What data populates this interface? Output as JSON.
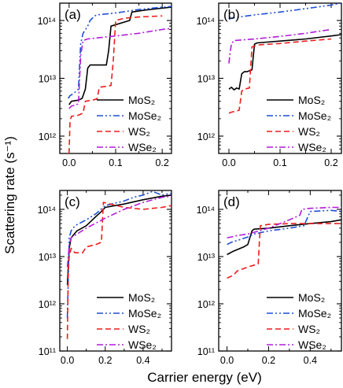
{
  "figure": {
    "ylabel": "Scattering rate (s⁻¹)",
    "xlabel": "Carrier energy (eV)"
  },
  "series_styles": [
    {
      "name": "MoS₂",
      "color": "#000000",
      "dash": "solid"
    },
    {
      "name": "MoSe₂",
      "color": "#1f4fd8",
      "dash": "dashdotdot"
    },
    {
      "name": "WS₂",
      "color": "#ee1c1c",
      "dash": "dash"
    },
    {
      "name": "WSe₂",
      "color": "#b21cd8",
      "dash": "dashdot"
    }
  ],
  "chart_data": [
    {
      "type": "line",
      "panel": "(a)",
      "xlim": [
        -0.02,
        0.22
      ],
      "ylim_log10": [
        11.7,
        14.3
      ],
      "yscale": "log",
      "xticks": [
        "0.0",
        "0.1",
        "0.2"
      ],
      "yticks": [
        "10¹²",
        "10¹³",
        "10¹⁴"
      ],
      "legend": "bottom-right",
      "series": [
        {
          "name": "MoS₂",
          "x": [
            0.0,
            0.005,
            0.02,
            0.028,
            0.035,
            0.04,
            0.045,
            0.08,
            0.085,
            0.09,
            0.13,
            0.135,
            0.16,
            0.19,
            0.22
          ],
          "y": [
            3500000000000.0,
            4000000000000.0,
            4200000000000.0,
            4500000000000.0,
            6500000000000.0,
            15000000000000.0,
            17000000000000.0,
            17000000000000.0,
            30000000000000.0,
            80000000000000.0,
            100000000000000.0,
            140000000000000.0,
            150000000000000.0,
            160000000000000.0,
            170000000000000.0
          ]
        },
        {
          "name": "MoSe₂",
          "x": [
            -0.002,
            0.002,
            0.01,
            0.02,
            0.025,
            0.03,
            0.04,
            0.045,
            0.055,
            0.06,
            0.1,
            0.15,
            0.2,
            0.22
          ],
          "y": [
            4500000000000.0,
            5000000000000.0,
            5500000000000.0,
            6500000000000.0,
            40000000000000.0,
            60000000000000.0,
            80000000000000.0,
            100000000000000.0,
            120000000000000.0,
            125000000000000.0,
            135000000000000.0,
            155000000000000.0,
            170000000000000.0,
            175000000000000.0
          ]
        },
        {
          "name": "WS₂",
          "x": [
            0.0,
            0.002,
            0.005,
            0.02,
            0.03,
            0.035,
            0.05,
            0.06,
            0.065,
            0.09,
            0.095,
            0.1,
            0.12,
            0.15,
            0.2
          ],
          "y": [
            500000000000.0,
            1800000000000.0,
            2200000000000.0,
            2300000000000.0,
            2500000000000.0,
            4000000000000.0,
            4200000000000.0,
            4400000000000.0,
            7000000000000.0,
            7500000000000.0,
            20000000000000.0,
            100000000000000.0,
            110000000000000.0,
            115000000000000.0,
            120000000000000.0
          ]
        },
        {
          "name": "WSe₂",
          "x": [
            0.0,
            0.005,
            0.02,
            0.025,
            0.03,
            0.04,
            0.06,
            0.1,
            0.15,
            0.2,
            0.22
          ],
          "y": [
            3000000000000.0,
            3300000000000.0,
            3600000000000.0,
            25000000000000.0,
            45000000000000.0,
            48000000000000.0,
            50000000000000.0,
            54000000000000.0,
            60000000000000.0,
            70000000000000.0,
            73000000000000.0
          ]
        }
      ]
    },
    {
      "type": "line",
      "panel": "(b)",
      "xlim": [
        -0.02,
        0.22
      ],
      "ylim_log10": [
        11.7,
        14.3
      ],
      "yscale": "log",
      "xticks": [
        "0.0",
        "0.1",
        "0.2"
      ],
      "yticks": [
        "10¹²",
        "10¹³",
        "10¹⁴"
      ],
      "legend": "bottom-right",
      "series": [
        {
          "name": "MoS₂",
          "x": [
            0.0,
            0.005,
            0.01,
            0.015,
            0.02,
            0.025,
            0.03,
            0.035,
            0.045,
            0.05,
            0.055,
            0.1,
            0.15,
            0.2,
            0.22
          ],
          "y": [
            6500000000000.0,
            7000000000000.0,
            6300000000000.0,
            6800000000000.0,
            6500000000000.0,
            12000000000000.0,
            13000000000000.0,
            13000000000000.0,
            14000000000000.0,
            39000000000000.0,
            41000000000000.0,
            44000000000000.0,
            48000000000000.0,
            54000000000000.0,
            57000000000000.0
          ]
        },
        {
          "name": "MoSe₂",
          "x": [
            0.0,
            0.005,
            0.05,
            0.1,
            0.15,
            0.2,
            0.22
          ],
          "y": [
            105000000000000.0,
            110000000000000.0,
            125000000000000.0,
            140000000000000.0,
            160000000000000.0,
            185000000000000.0,
            200000000000000.0
          ]
        },
        {
          "name": "WS₂",
          "x": [
            0.0,
            0.005,
            0.02,
            0.025,
            0.03,
            0.04,
            0.045,
            0.05,
            0.06,
            0.1,
            0.15,
            0.2
          ],
          "y": [
            2500000000000.0,
            2600000000000.0,
            2800000000000.0,
            6000000000000.0,
            6500000000000.0,
            6800000000000.0,
            35000000000000.0,
            36000000000000.0,
            38000000000000.0,
            40000000000000.0,
            44000000000000.0,
            48000000000000.0
          ]
        },
        {
          "name": "WSe₂",
          "x": [
            0.0,
            0.002,
            0.005,
            0.01,
            0.05,
            0.1,
            0.15,
            0.2
          ],
          "y": [
            18000000000000.0,
            27000000000000.0,
            40000000000000.0,
            45000000000000.0,
            48000000000000.0,
            53000000000000.0,
            60000000000000.0,
            70000000000000.0
          ]
        }
      ]
    },
    {
      "type": "line",
      "panel": "(c)",
      "xlim": [
        -0.04,
        0.55
      ],
      "ylim_log10": [
        11.0,
        14.4
      ],
      "yscale": "log",
      "xticks": [
        "0.0",
        "0.2",
        "0.4"
      ],
      "yticks": [
        "10¹¹",
        "10¹²",
        "10¹³",
        "10¹⁴"
      ],
      "legend": "bottom-right",
      "series": [
        {
          "name": "MoS₂",
          "x": [
            0.0,
            0.01,
            0.02,
            0.05,
            0.1,
            0.15,
            0.18,
            0.2,
            0.3,
            0.4,
            0.5,
            0.55
          ],
          "y": [
            2500000000000.0,
            15000000000000.0,
            25000000000000.0,
            35000000000000.0,
            45000000000000.0,
            70000000000000.0,
            90000000000000.0,
            110000000000000.0,
            130000000000000.0,
            160000000000000.0,
            190000000000000.0,
            200000000000000.0
          ]
        },
        {
          "name": "MoSe₂",
          "x": [
            0.0,
            0.01,
            0.02,
            0.04,
            0.1,
            0.15,
            0.2,
            0.3,
            0.35,
            0.4,
            0.45,
            0.5,
            0.55
          ],
          "y": [
            500000000000.0,
            25000000000000.0,
            35000000000000.0,
            45000000000000.0,
            60000000000000.0,
            80000000000000.0,
            120000000000000.0,
            150000000000000.0,
            180000000000000.0,
            200000000000000.0,
            240000000000000.0,
            200000000000000.0,
            220000000000000.0
          ]
        },
        {
          "name": "WS₂",
          "x": [
            0.0,
            0.005,
            0.01,
            0.02,
            0.04,
            0.08,
            0.1,
            0.15,
            0.18,
            0.19,
            0.3,
            0.4,
            0.5,
            0.55
          ],
          "y": [
            180000000000.0,
            5000000000000.0,
            10000000000000.0,
            15000000000000.0,
            12000000000000.0,
            12000000000000.0,
            16000000000000.0,
            18000000000000.0,
            20000000000000.0,
            140000000000000.0,
            110000000000000.0,
            100000000000000.0,
            110000000000000.0,
            120000000000000.0
          ]
        },
        {
          "name": "WSe₂",
          "x": [
            0.0,
            0.005,
            0.01,
            0.02,
            0.05,
            0.1,
            0.2,
            0.3,
            0.4,
            0.5,
            0.55
          ],
          "y": [
            6000000000000.0,
            10000000000000.0,
            18000000000000.0,
            25000000000000.0,
            30000000000000.0,
            40000000000000.0,
            65000000000000.0,
            100000000000000.0,
            140000000000000.0,
            180000000000000.0,
            190000000000000.0
          ]
        }
      ]
    },
    {
      "type": "line",
      "panel": "(d)",
      "xlim": [
        -0.04,
        0.55
      ],
      "ylim_log10": [
        11.0,
        14.4
      ],
      "yscale": "log",
      "xticks": [
        "0.0",
        "0.2",
        "0.4"
      ],
      "yticks": [
        "10¹¹",
        "10¹²",
        "10¹³",
        "10¹⁴"
      ],
      "legend": "bottom-right",
      "series": [
        {
          "name": "MoS₂",
          "x": [
            0.0,
            0.03,
            0.08,
            0.1,
            0.12,
            0.13,
            0.2,
            0.3,
            0.4,
            0.5,
            0.55
          ],
          "y": [
            11000000000000.0,
            13000000000000.0,
            16000000000000.0,
            18000000000000.0,
            35000000000000.0,
            38000000000000.0,
            40000000000000.0,
            45000000000000.0,
            50000000000000.0,
            55000000000000.0,
            60000000000000.0
          ]
        },
        {
          "name": "MoSe₂",
          "x": [
            0.0,
            0.02,
            0.05,
            0.1,
            0.13,
            0.2,
            0.3,
            0.37,
            0.4,
            0.5,
            0.55
          ],
          "y": [
            18000000000000.0,
            20000000000000.0,
            22000000000000.0,
            26000000000000.0,
            30000000000000.0,
            35000000000000.0,
            40000000000000.0,
            45000000000000.0,
            90000000000000.0,
            95000000000000.0,
            90000000000000.0
          ]
        },
        {
          "name": "WS₂",
          "x": [
            0.0,
            0.03,
            0.05,
            0.1,
            0.15,
            0.16,
            0.2,
            0.3,
            0.4,
            0.5,
            0.55
          ],
          "y": [
            3500000000000.0,
            4000000000000.0,
            5000000000000.0,
            6000000000000.0,
            7000000000000.0,
            45000000000000.0,
            48000000000000.0,
            50000000000000.0,
            50000000000000.0,
            50000000000000.0,
            50000000000000.0
          ]
        },
        {
          "name": "WSe₂",
          "x": [
            0.0,
            0.02,
            0.05,
            0.1,
            0.2,
            0.3,
            0.35,
            0.36,
            0.4,
            0.5,
            0.55
          ],
          "y": [
            25000000000000.0,
            26000000000000.0,
            28000000000000.0,
            30000000000000.0,
            40000000000000.0,
            60000000000000.0,
            75000000000000.0,
            100000000000000.0,
            105000000000000.0,
            110000000000000.0,
            110000000000000.0
          ]
        }
      ]
    }
  ]
}
